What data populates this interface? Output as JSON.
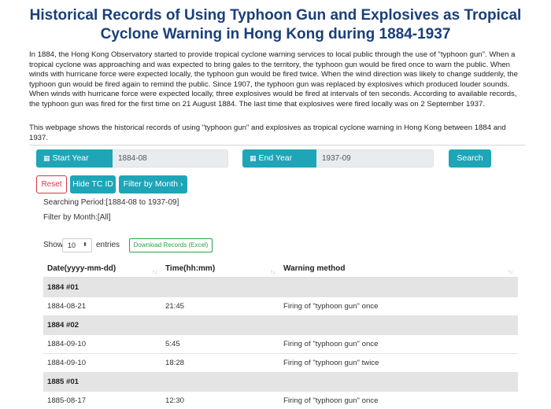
{
  "page": {
    "title": "Historical Records of Using Typhoon Gun and Explosives as Tropical Cyclone Warning in Hong Kong during 1884-1937",
    "intro": "In 1884, the Hong Kong Observatory started to provide tropical cyclone warning services to local public through the use of \"typhoon gun\". When a tropical cyclone was approaching and was expected to bring gales to the territory, the typhoon gun would be fired once to warn the public. When winds with hurricane force were expected locally, the typhoon gun would be fired twice. When the wind direction was likely to change suddenly, the typhoon gun would be fired again to remind the public. Since 1907, the typhoon gun was replaced by explosives which produced louder sounds. When winds with hurricane force were expected locally, three explosives would be fired at intervals of ten seconds. According to available records, the typhoon gun was fired for the first time on 21 August 1884. The last time that explosives were fired locally was on 2 September 1937.",
    "description": "This webpage shows the historical records of using \"typhoon gun\" and explosives as tropical cyclone warning in Hong Kong between 1884 and 1937."
  },
  "controls": {
    "start_label": "Start Year Month",
    "start_value": "1884-08",
    "end_label": "End Year Month",
    "end_value": "1937-09",
    "search_button": "Search",
    "reset_button": "Reset",
    "hide_tc_button": "Hide TC ID",
    "filter_button": "Filter by Month",
    "filter_caret": "›",
    "calendar_glyph": "▦"
  },
  "info": {
    "searching_period": "Searching Period:[1884-08 to 1937-09]",
    "filter_by_month": "Filter by Month:[All]"
  },
  "length": {
    "show_label": "Show",
    "selected": "10",
    "entries_label": "entries",
    "download_button": "Download Records (Excel)"
  },
  "table": {
    "headers": [
      "Date(yyyy-mm-dd)",
      "Time(hh:mm)",
      "Warning method"
    ],
    "sort_glyph": "↑↓",
    "rows": [
      {
        "type": "group",
        "label": "1884 #01"
      },
      {
        "type": "data",
        "date": "1884-08-21",
        "time": "21:45",
        "method": "Firing of \"typhoon gun\" once"
      },
      {
        "type": "group",
        "label": "1884 #02"
      },
      {
        "type": "data",
        "date": "1884-09-10",
        "time": "5:45",
        "method": "Firing of \"typhoon gun\" once"
      },
      {
        "type": "data",
        "date": "1884-09-10",
        "time": "18:28",
        "method": "Firing of \"typhoon gun\" twice"
      },
      {
        "type": "group",
        "label": "1885 #01"
      },
      {
        "type": "data",
        "date": "1885-08-17",
        "time": "12:30",
        "method": "Firing of \"typhoon gun\" once"
      }
    ]
  },
  "colors": {
    "title": "#1a3f7a",
    "accent": "#1ea5b8",
    "reset": "#dc3545",
    "download": "#28a745",
    "group_row": "#e4e4e4"
  }
}
